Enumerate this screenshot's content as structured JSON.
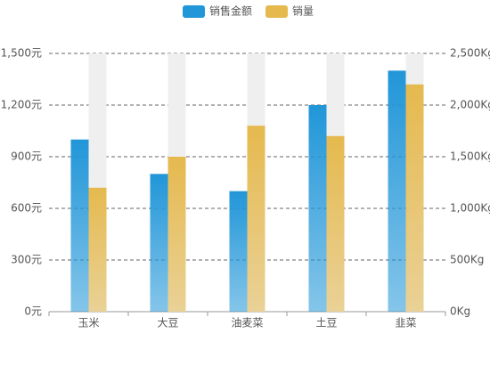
{
  "chart_data": {
    "type": "bar",
    "categories": [
      "玉米",
      "大豆",
      "油麦菜",
      "土豆",
      "韭菜"
    ],
    "series": [
      {
        "name": "销售金额",
        "color": "#2196d8",
        "values": [
          1000,
          800,
          700,
          1200,
          1400
        ]
      },
      {
        "name": "销量",
        "color": "#e5b94e",
        "axis": "y2",
        "values": [
          1200,
          1500,
          1800,
          1700,
          2200
        ]
      }
    ],
    "ylim": [
      0,
      1500
    ],
    "yticks": [
      {
        "value": 0,
        "label": "0元"
      },
      {
        "value": 300,
        "label": "300元"
      },
      {
        "value": 600,
        "label": "600元"
      },
      {
        "value": 900,
        "label": "900元"
      },
      {
        "value": 1200,
        "label": "1,200元"
      },
      {
        "value": 1500,
        "label": "1,500元"
      }
    ],
    "y2lim": [
      0,
      2500
    ],
    "y2ticks": [
      {
        "value": 0,
        "label": "0Kg"
      },
      {
        "value": 500,
        "label": "500Kg"
      },
      {
        "value": 1000,
        "label": "1,000Kg"
      },
      {
        "value": 1500,
        "label": "1,500Kg"
      },
      {
        "value": 2000,
        "label": "2,000Kg"
      },
      {
        "value": 2500,
        "label": "2,500Kg"
      }
    ],
    "grid": true,
    "legend": "top"
  }
}
